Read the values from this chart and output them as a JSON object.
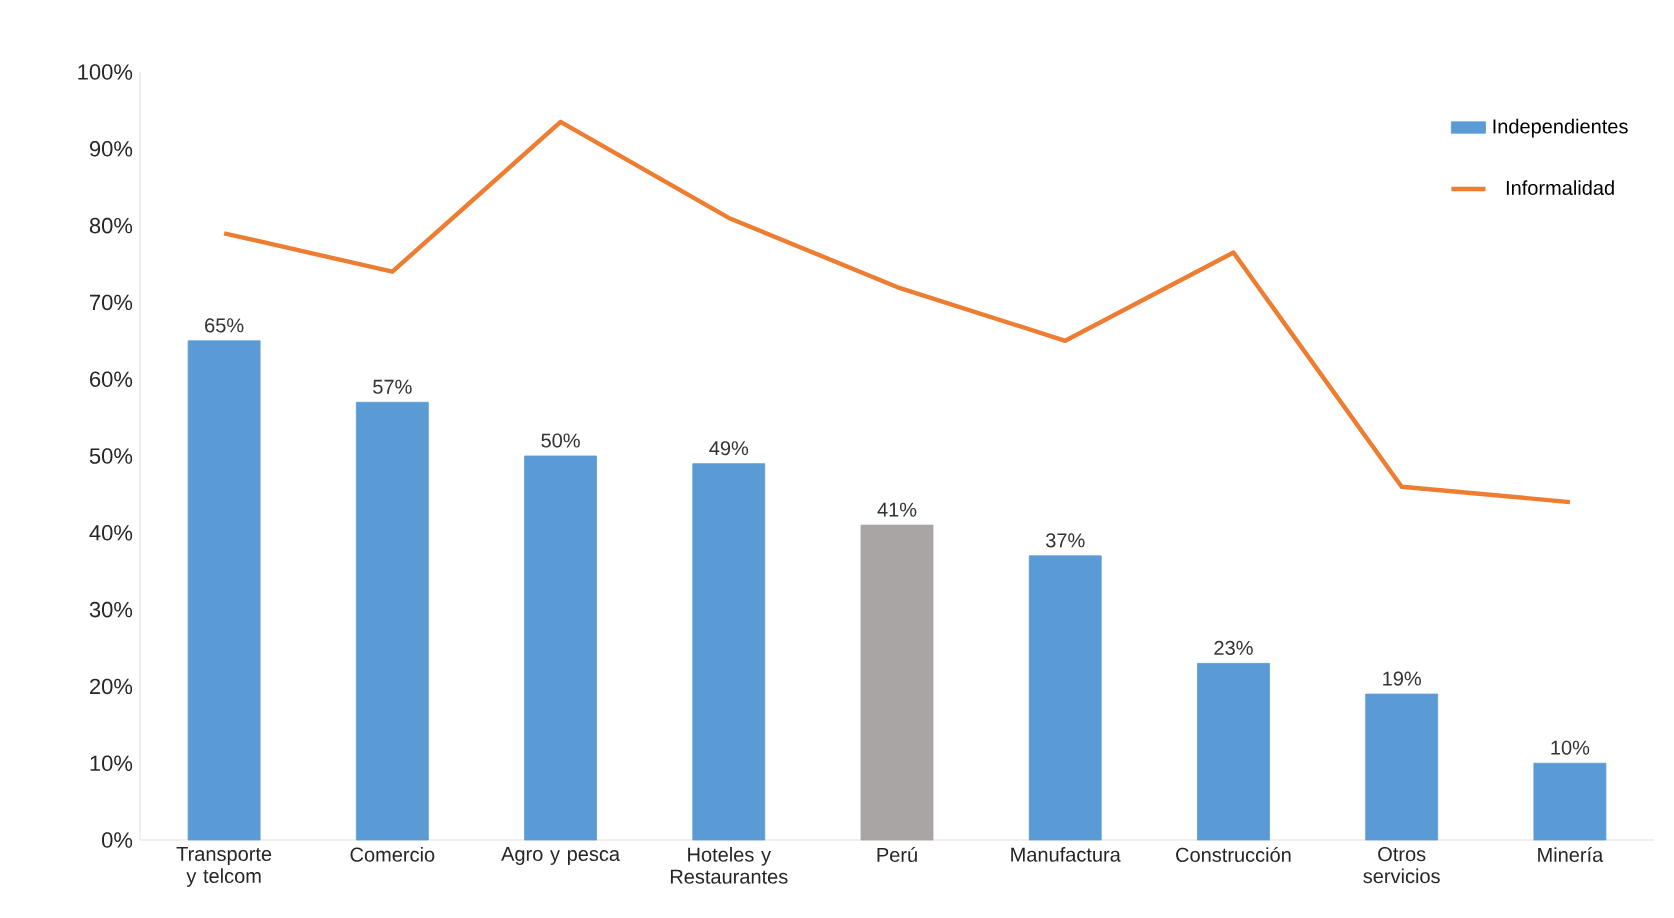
{
  "chart_data": {
    "type": "bar",
    "categories": [
      "Transporte y telcom",
      "Comercio",
      "Agro y pesca",
      "Hoteles y Restaurantes",
      "Perú",
      "Manufactura",
      "Construcción",
      "Otros servicios",
      "Minería"
    ],
    "series": [
      {
        "name": "Independientes",
        "colors": [
          "#5b9bd5",
          "#5b9bd5",
          "#5b9bd5",
          "#5b9bd5",
          "#a8a5a4",
          "#5b9bd5",
          "#5b9bd5",
          "#5b9bd5",
          "#5b9bd5"
        ],
        "values": [
          65,
          57,
          50,
          49,
          41,
          37,
          23,
          19,
          10
        ],
        "value_labels": [
          "65%",
          "57%",
          "50%",
          "49%",
          "41%",
          "37%",
          "23%",
          "19%",
          "10%"
        ]
      },
      {
        "name": "Informalidad",
        "type": "line",
        "color": "#ed7d31",
        "values": [
          79,
          74,
          93.5,
          81,
          72,
          65,
          76.5,
          46,
          44
        ]
      }
    ],
    "ylim": [
      0,
      100
    ],
    "yticks": [
      {
        "value": 0,
        "label": "0%"
      },
      {
        "value": 10,
        "label": "10%"
      },
      {
        "value": 20,
        "label": "20%"
      },
      {
        "value": 30,
        "label": "30%"
      },
      {
        "value": 40,
        "label": "40%"
      },
      {
        "value": 50,
        "label": "50%"
      },
      {
        "value": 60,
        "label": "60%"
      },
      {
        "value": 70,
        "label": "70%"
      },
      {
        "value": 80,
        "label": "80%"
      },
      {
        "value": 90,
        "label": "90%"
      },
      {
        "value": 100,
        "label": "100%"
      }
    ],
    "grid": false,
    "legend": "top right"
  }
}
